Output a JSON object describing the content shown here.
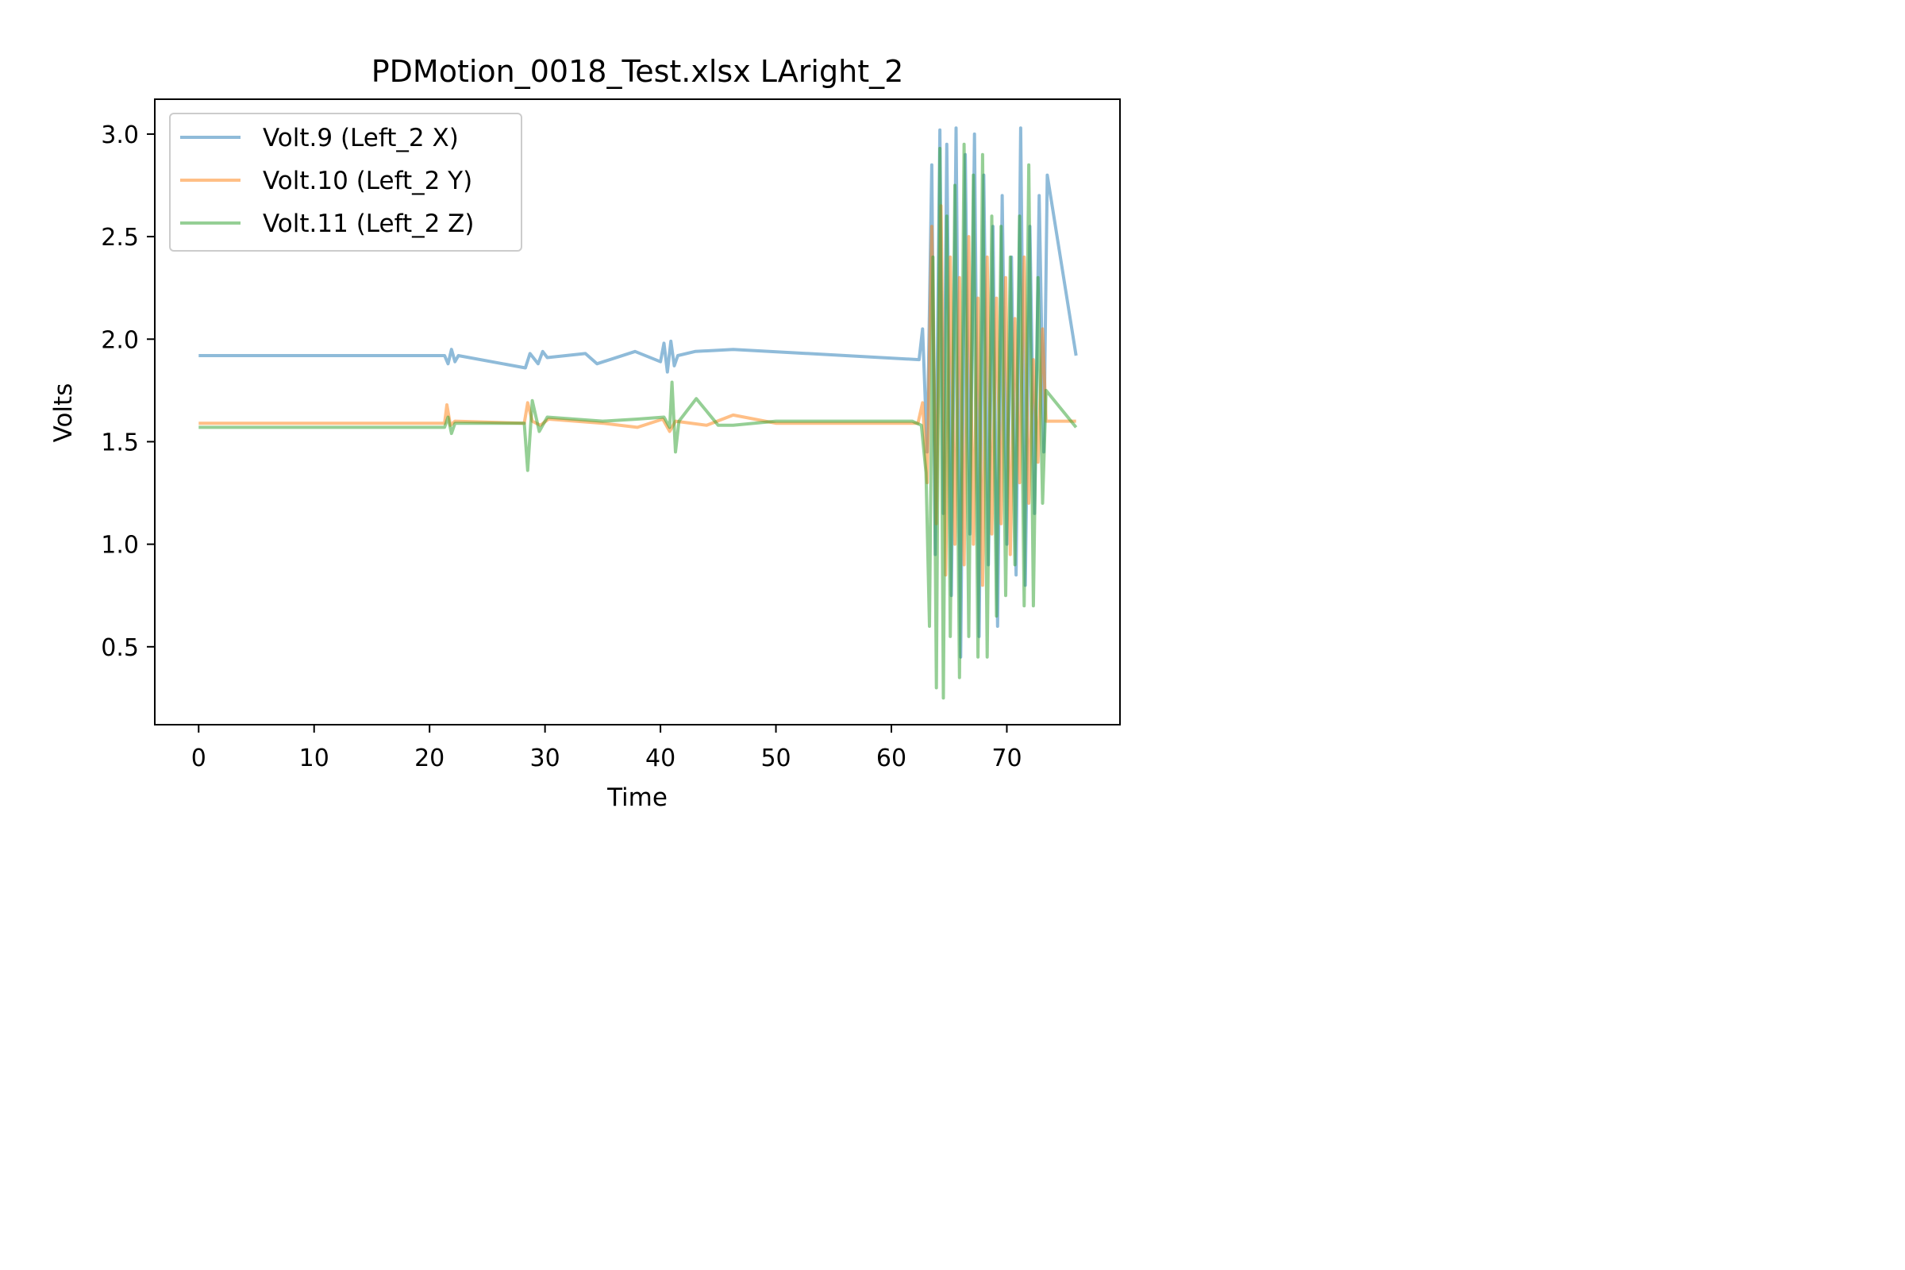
{
  "chart_data": {
    "type": "line",
    "title": "PDMotion_0018_Test.xlsx LAright_2",
    "xlabel": "Time",
    "ylabel": "Volts",
    "xlim": [
      -3.8,
      79.8
    ],
    "ylim": [
      0.12,
      3.17
    ],
    "xticks": [
      0,
      10,
      20,
      30,
      40,
      50,
      60,
      70
    ],
    "xtick_labels": [
      "0",
      "10",
      "20",
      "30",
      "40",
      "50",
      "60",
      "70"
    ],
    "yticks": [
      0.5,
      1.0,
      1.5,
      2.0,
      2.5,
      3.0
    ],
    "ytick_labels": [
      "0.5",
      "1.0",
      "1.5",
      "2.0",
      "2.5",
      "3.0"
    ],
    "legend_position": "upper-left",
    "series": [
      {
        "name": "Volt.9 (Left_2 X)",
        "color": "#1f77b4",
        "x": [
          0,
          21.3,
          21.6,
          21.9,
          22.2,
          22.5,
          28.3,
          28.7,
          29.4,
          29.8,
          30.2,
          33.5,
          34.5,
          37.8,
          40.0,
          40.3,
          40.6,
          40.9,
          41.2,
          41.5,
          43.0,
          46.3,
          62.4,
          62.7,
          63.1,
          63.5,
          63.8,
          64.2,
          64.5,
          64.8,
          65.2,
          65.6,
          66.0,
          66.4,
          66.8,
          67.2,
          67.6,
          68.0,
          68.4,
          68.8,
          69.2,
          69.6,
          70.0,
          70.4,
          70.8,
          71.2,
          71.6,
          72.0,
          72.4,
          72.8,
          73.2,
          73.5,
          76.0
        ],
        "values": [
          1.92,
          1.92,
          1.88,
          1.95,
          1.89,
          1.92,
          1.86,
          1.93,
          1.88,
          1.94,
          1.91,
          1.93,
          1.88,
          1.94,
          1.89,
          1.98,
          1.84,
          1.99,
          1.87,
          1.92,
          1.94,
          1.95,
          1.9,
          2.05,
          1.45,
          2.85,
          0.95,
          3.02,
          1.15,
          2.95,
          0.75,
          3.03,
          0.45,
          2.9,
          1.05,
          3.0,
          0.55,
          2.8,
          0.9,
          2.55,
          0.6,
          2.7,
          1.0,
          2.4,
          0.85,
          3.03,
          0.8,
          2.55,
          1.15,
          2.7,
          1.45,
          2.8,
          1.92
        ]
      },
      {
        "name": "Volt.10 (Left_2 Y)",
        "color": "#ff7f0e",
        "x": [
          0,
          21.3,
          21.5,
          21.8,
          22.2,
          28.2,
          28.5,
          28.9,
          29.6,
          30.3,
          35.0,
          38.0,
          40.2,
          40.8,
          41.3,
          44.0,
          46.3,
          50.0,
          62.3,
          62.7,
          63.1,
          63.5,
          63.9,
          64.3,
          64.7,
          65.1,
          65.5,
          65.9,
          66.3,
          66.7,
          67.1,
          67.5,
          67.9,
          68.3,
          68.7,
          69.1,
          69.5,
          69.9,
          70.3,
          70.7,
          71.1,
          71.5,
          71.9,
          72.3,
          72.7,
          73.1,
          73.4,
          76.0
        ],
        "values": [
          1.59,
          1.59,
          1.68,
          1.58,
          1.6,
          1.59,
          1.69,
          1.6,
          1.58,
          1.61,
          1.59,
          1.57,
          1.61,
          1.55,
          1.6,
          1.58,
          1.63,
          1.59,
          1.59,
          1.69,
          1.3,
          2.55,
          1.1,
          2.65,
          0.85,
          2.4,
          1.0,
          2.3,
          0.9,
          2.5,
          1.0,
          2.2,
          0.8,
          2.4,
          1.05,
          2.2,
          1.1,
          2.3,
          0.95,
          2.1,
          1.3,
          2.4,
          1.2,
          1.9,
          1.4,
          2.05,
          1.6,
          1.6
        ]
      },
      {
        "name": "Volt.11 (Left_2 Z)",
        "color": "#2ca02c",
        "x": [
          0,
          21.3,
          21.6,
          21.9,
          22.2,
          28.2,
          28.5,
          28.9,
          29.5,
          30.2,
          35.0,
          38.0,
          40.3,
          40.8,
          41.0,
          41.3,
          41.6,
          43.1,
          45.0,
          46.3,
          50.0,
          61.8,
          62.6,
          63.0,
          63.3,
          63.6,
          63.9,
          64.2,
          64.5,
          64.8,
          65.1,
          65.5,
          65.9,
          66.3,
          66.7,
          67.1,
          67.5,
          67.9,
          68.3,
          68.7,
          69.1,
          69.5,
          69.9,
          70.3,
          70.7,
          71.1,
          71.5,
          71.9,
          72.3,
          72.7,
          73.1,
          73.4,
          76.0
        ],
        "values": [
          1.57,
          1.57,
          1.62,
          1.54,
          1.59,
          1.59,
          1.36,
          1.7,
          1.55,
          1.62,
          1.6,
          1.61,
          1.62,
          1.57,
          1.79,
          1.45,
          1.6,
          1.71,
          1.58,
          1.58,
          1.6,
          1.6,
          1.58,
          1.35,
          0.6,
          2.4,
          0.3,
          2.93,
          0.25,
          2.6,
          0.55,
          2.75,
          0.35,
          2.95,
          0.55,
          2.8,
          0.45,
          2.9,
          0.45,
          2.6,
          0.65,
          2.55,
          0.75,
          2.4,
          0.9,
          2.6,
          0.7,
          2.85,
          0.7,
          2.3,
          1.2,
          1.75,
          1.57
        ]
      }
    ]
  }
}
